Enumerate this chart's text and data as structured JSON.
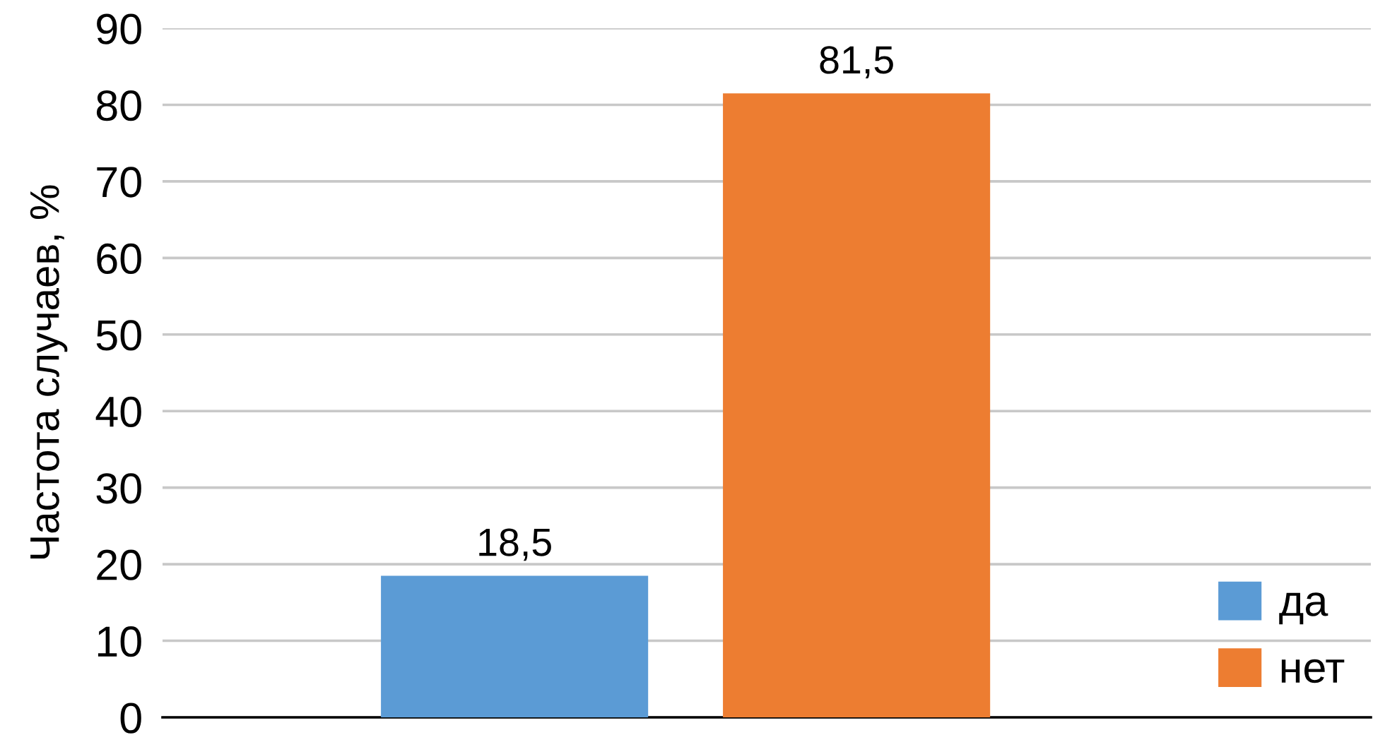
{
  "chart_data": {
    "type": "bar",
    "ylabel": "Частота случаев, %",
    "categories": [
      null
    ],
    "series": [
      {
        "name": "да",
        "color": "#5b9bd5",
        "values": [
          18.5
        ],
        "value_labels": [
          "18,5"
        ]
      },
      {
        "name": "нет",
        "color": "#ed7d31",
        "values": [
          81.5
        ],
        "value_labels": [
          "81,5"
        ]
      }
    ],
    "ylim": [
      0,
      90
    ],
    "yticks": [
      0,
      10,
      20,
      30,
      40,
      50,
      60,
      70,
      80,
      90
    ],
    "grid": "y",
    "legend": "bottom right"
  }
}
